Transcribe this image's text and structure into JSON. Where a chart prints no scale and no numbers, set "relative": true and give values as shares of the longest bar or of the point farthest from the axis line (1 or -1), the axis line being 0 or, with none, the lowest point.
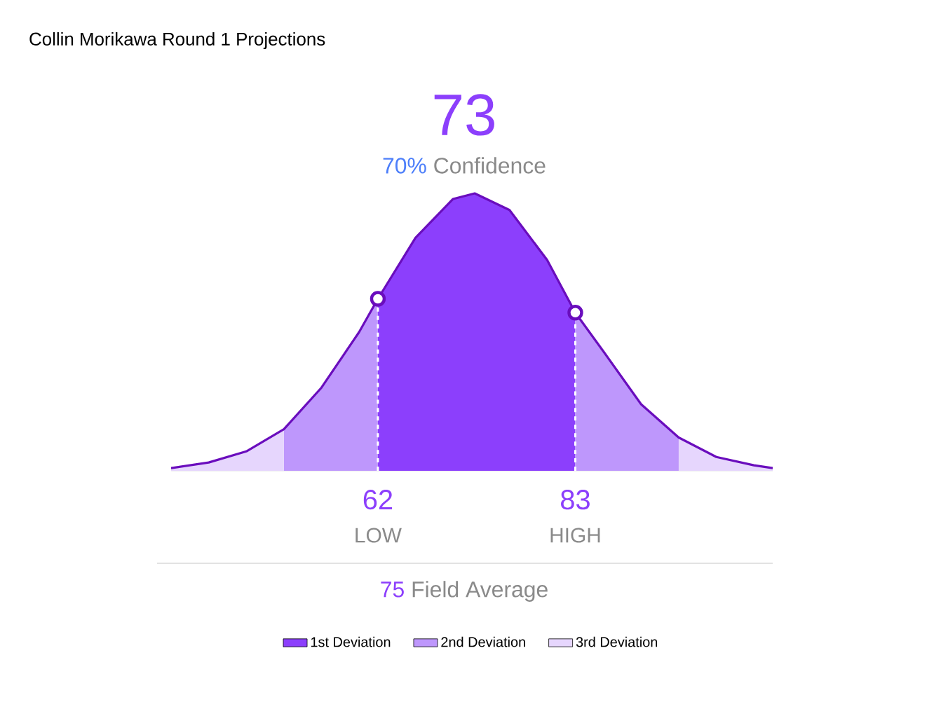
{
  "chart_data": {
    "type": "area",
    "title": "Collin Morikawa Round 1 Projections",
    "relative": true,
    "xlim": [
      40,
      104
    ],
    "xticks": [
      62,
      83
    ],
    "x": [
      40,
      44,
      48,
      52,
      56,
      60,
      62,
      66,
      70,
      72.3,
      76,
      80,
      83,
      86,
      90,
      94,
      98,
      102,
      104
    ],
    "series": [
      {
        "name": "1st Deviation",
        "color": "#8c3ffc",
        "values": [
          null,
          null,
          null,
          null,
          null,
          null,
          0.62,
          0.84,
          0.98,
          1,
          0.94,
          0.76,
          0.57,
          null,
          null,
          null,
          null,
          null,
          null
        ]
      },
      {
        "name": "2nd Deviation",
        "color": "#be97fc",
        "values": [
          null,
          null,
          null,
          0.15,
          0.3,
          0.5,
          0.62,
          null,
          null,
          null,
          null,
          null,
          0.57,
          0.43,
          0.24,
          0.12,
          null,
          null,
          null
        ]
      },
      {
        "name": "3rd Deviation",
        "color": "#e6d6fd",
        "values": [
          0.01,
          0.03,
          0.07,
          0.15,
          null,
          null,
          null,
          null,
          null,
          null,
          null,
          null,
          null,
          null,
          null,
          0.12,
          0.05,
          0.02,
          0.01
        ]
      },
      {
        "type": "line",
        "color": "#6a0dbd",
        "values": [
          0.01,
          0.03,
          0.07,
          0.15,
          0.3,
          0.5,
          0.62,
          0.84,
          0.98,
          1,
          0.94,
          0.76,
          0.57,
          0.43,
          0.24,
          0.12,
          0.05,
          0.02,
          0.01
        ]
      },
      {
        "type": "scatter",
        "color": "#6a0dbd",
        "marker": "circle",
        "x": [
          62,
          83
        ],
        "values": [
          0.62,
          0.57
        ]
      }
    ],
    "ref_lines": [
      {
        "axis": "x",
        "value": 62,
        "color": "#ffffff",
        "line_style": "dashed"
      },
      {
        "axis": "x",
        "value": 83,
        "color": "#ffffff",
        "line_style": "dashed"
      }
    ],
    "annotations": [
      "73",
      "70%",
      "Confidence",
      "LOW",
      "HIGH",
      "75",
      "Field Average"
    ],
    "legend": "bottom"
  }
}
